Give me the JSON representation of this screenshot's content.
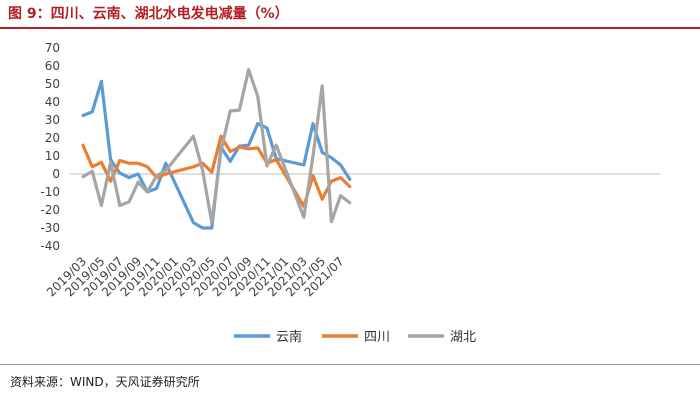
{
  "title": "图 9：四川、云南、湖北水电发电减量（%）",
  "source": "资料来源：WIND，天风证券研究所",
  "chart_data": {
    "type": "line",
    "title": "图 9：四川、云南、湖北水电发电减量（%）",
    "xlabel": "",
    "ylabel": "",
    "ylim": [
      -40,
      70
    ],
    "yticks": [
      70,
      60,
      50,
      40,
      30,
      20,
      10,
      0,
      -10,
      -20,
      -30,
      -40
    ],
    "grid": false,
    "legend_position": "bottom-center",
    "x_tick_labels": [
      "2019/03",
      "2019/05",
      "2019/07",
      "2019/09",
      "2019/11",
      "2020/01",
      "2020/03",
      "2020/05",
      "2020/07",
      "2020/09",
      "2020/11",
      "2021/01",
      "2021/03",
      "2021/05",
      "2021/07"
    ],
    "x": [
      "2019/03",
      "2019/04",
      "2019/05",
      "2019/06",
      "2019/07",
      "2019/08",
      "2019/09",
      "2019/10",
      "2019/11",
      "2019/12",
      "2020/03",
      "2020/04",
      "2020/05",
      "2020/06",
      "2020/07",
      "2020/08",
      "2020/09",
      "2020/10",
      "2020/11",
      "2020/12",
      "2021/03",
      "2021/04",
      "2021/05",
      "2021/06",
      "2021/07",
      "2021/08"
    ],
    "series": [
      {
        "name": "云南",
        "color": "#5b9bd5",
        "values": [
          32.5,
          34.5,
          51.5,
          8,
          0.5,
          -2,
          0,
          -10,
          -8,
          6,
          -27,
          -30,
          -30,
          15,
          7,
          15.5,
          16,
          28,
          25.5,
          8.5,
          5,
          28,
          12,
          9,
          5,
          -3
        ]
      },
      {
        "name": "四川",
        "color": "#ed7d31",
        "values": [
          16,
          4,
          6.5,
          -4,
          7.5,
          6,
          6,
          4,
          -2,
          0,
          4,
          6,
          1,
          21,
          12.5,
          15,
          14,
          14.5,
          6,
          8,
          -18,
          -1,
          -14,
          -4,
          -2,
          -7
        ]
      },
      {
        "name": "湖北",
        "color": "#a5a5a5",
        "values": [
          -1.5,
          1.5,
          -17.5,
          6.5,
          -17.5,
          -15.5,
          -4.5,
          -10,
          -1,
          2,
          21,
          2,
          -27,
          13,
          35,
          35.5,
          58,
          43,
          4.5,
          16,
          -24,
          10,
          49,
          -26.5,
          -12,
          -16
        ]
      }
    ]
  }
}
